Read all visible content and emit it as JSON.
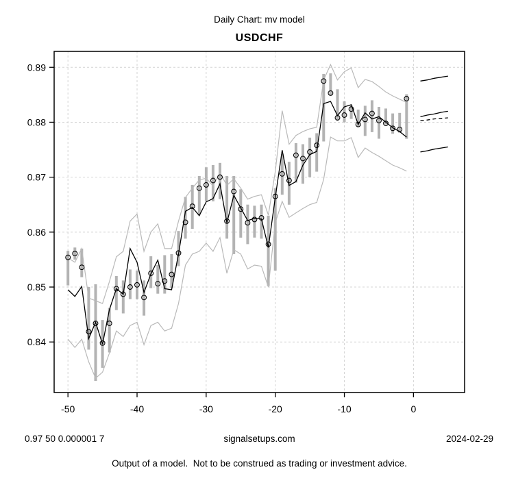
{
  "header": {
    "title": "Daily Chart: mv model",
    "subtitle": "USDCHF"
  },
  "footer": {
    "params": "0.97 50 0.000001 7",
    "site": "signalsetups.com",
    "date": "2024-02-29",
    "disclaimer": "Output of a model.  Not to be construed as trading or investment advice."
  },
  "chart_data": {
    "type": "line",
    "title": "Daily Chart: mv model",
    "subtitle": "USDCHF",
    "xlabel": "",
    "ylabel": "",
    "xlim": [
      -52,
      7.4
    ],
    "ylim": [
      0.8308,
      0.8929
    ],
    "x_ticks": [
      -50,
      -40,
      -30,
      -20,
      -10,
      0
    ],
    "y_ticks": [
      0.84,
      0.85,
      0.86,
      0.87,
      0.88,
      0.89
    ],
    "grid": true,
    "legend_position": "none",
    "colors": {
      "range_bar": "#b3b3b3",
      "band_line": "#b9b9b9",
      "model_line": "#000000",
      "close_marker": "#000000",
      "grid_line": "#d4d4d4",
      "axis": "#000000",
      "background": "#ffffff"
    },
    "x": [
      -50,
      -49,
      -48,
      -47,
      -46,
      -45,
      -44,
      -43,
      -42,
      -41,
      -40,
      -39,
      -38,
      -37,
      -36,
      -35,
      -34,
      -33,
      -32,
      -31,
      -30,
      -29,
      -28,
      -27,
      -26,
      -25,
      -24,
      -23,
      -22,
      -21,
      -20,
      -19,
      -18,
      -17,
      -16,
      -15,
      -14,
      -13,
      -12,
      -11,
      -10,
      -9,
      -8,
      -7,
      -6,
      -5,
      -4,
      -3,
      -2,
      -1
    ],
    "series": [
      {
        "name": "daily_range",
        "type": "bar-range",
        "high": [
          0.8566,
          0.8572,
          0.857,
          0.85,
          0.8505,
          0.844,
          0.8462,
          0.852,
          0.8512,
          0.8532,
          0.853,
          0.8512,
          0.8556,
          0.854,
          0.8558,
          0.856,
          0.8602,
          0.8664,
          0.8686,
          0.8702,
          0.8718,
          0.8722,
          0.8726,
          0.8702,
          0.8702,
          0.8678,
          0.865,
          0.8648,
          0.865,
          0.863,
          0.868,
          0.8742,
          0.8728,
          0.8762,
          0.876,
          0.8772,
          0.878,
          0.8888,
          0.8889,
          0.886,
          0.8838,
          0.8831,
          0.8823,
          0.883,
          0.884,
          0.8828,
          0.8825,
          0.8816,
          0.8817,
          0.8851
        ],
        "low": [
          0.8503,
          0.855,
          0.8518,
          0.8386,
          0.8329,
          0.8353,
          0.8381,
          0.8458,
          0.8452,
          0.8478,
          0.8478,
          0.8448,
          0.8498,
          0.8488,
          0.8488,
          0.8498,
          0.8538,
          0.8588,
          0.8606,
          0.8632,
          0.8656,
          0.8656,
          0.866,
          0.8588,
          0.856,
          0.859,
          0.8578,
          0.859,
          0.8588,
          0.8502,
          0.853,
          0.8668,
          0.865,
          0.869,
          0.8688,
          0.87,
          0.871,
          0.8765,
          0.885,
          0.8803,
          0.88,
          0.8806,
          0.8791,
          0.8775,
          0.8782,
          0.877,
          0.8796,
          0.8779,
          0.8781,
          0.877
        ]
      },
      {
        "name": "close",
        "type": "scatter",
        "marker": "open-circle",
        "values": [
          0.8554,
          0.8561,
          0.8536,
          0.8419,
          0.8434,
          0.8398,
          0.8434,
          0.8497,
          0.8487,
          0.85,
          0.8504,
          0.8481,
          0.8525,
          0.8506,
          0.8511,
          0.8523,
          0.8562,
          0.8618,
          0.8647,
          0.868,
          0.8686,
          0.8694,
          0.87,
          0.862,
          0.8674,
          0.8642,
          0.8617,
          0.8623,
          0.8626,
          0.8578,
          0.8665,
          0.8706,
          0.8694,
          0.874,
          0.8734,
          0.8746,
          0.8758,
          0.8875,
          0.8853,
          0.8808,
          0.8813,
          0.8824,
          0.8796,
          0.8805,
          0.8816,
          0.8803,
          0.8798,
          0.8789,
          0.8787,
          0.8843
        ]
      },
      {
        "name": "model",
        "type": "line",
        "values": [
          0.8495,
          0.8483,
          0.8501,
          0.8406,
          0.8436,
          0.8396,
          0.8459,
          0.8497,
          0.8487,
          0.857,
          0.8545,
          0.849,
          0.8524,
          0.8549,
          0.8497,
          0.8495,
          0.856,
          0.8638,
          0.8645,
          0.863,
          0.8655,
          0.8661,
          0.8688,
          0.8617,
          0.8667,
          0.8644,
          0.8621,
          0.8625,
          0.8624,
          0.8572,
          0.8663,
          0.8749,
          0.8685,
          0.8692,
          0.8722,
          0.8741,
          0.8747,
          0.8834,
          0.8838,
          0.8812,
          0.8828,
          0.8832,
          0.8796,
          0.8817,
          0.8806,
          0.881,
          0.88,
          0.879,
          0.8783,
          0.8773
        ]
      },
      {
        "name": "upper_band",
        "type": "line",
        "values": [
          0.8553,
          0.8545,
          0.857,
          0.848,
          0.8475,
          0.847,
          0.851,
          0.8555,
          0.8565,
          0.862,
          0.8633,
          0.8565,
          0.86,
          0.8615,
          0.857,
          0.857,
          0.862,
          0.8663,
          0.868,
          0.8695,
          0.8698,
          0.8684,
          0.8708,
          0.8685,
          0.8697,
          0.868,
          0.866,
          0.8665,
          0.8668,
          0.8631,
          0.871,
          0.8821,
          0.876,
          0.8776,
          0.8783,
          0.8788,
          0.8791,
          0.8877,
          0.8905,
          0.8877,
          0.8892,
          0.8899,
          0.8863,
          0.8878,
          0.8874,
          0.8865,
          0.8855,
          0.8848,
          0.8842,
          0.8836
        ]
      },
      {
        "name": "lower_band",
        "type": "line",
        "values": [
          0.8405,
          0.839,
          0.8405,
          0.8364,
          0.8334,
          0.8345,
          0.838,
          0.842,
          0.841,
          0.843,
          0.8436,
          0.8395,
          0.843,
          0.8436,
          0.842,
          0.8425,
          0.847,
          0.854,
          0.856,
          0.8565,
          0.858,
          0.8565,
          0.859,
          0.8525,
          0.8568,
          0.856,
          0.8533,
          0.854,
          0.8538,
          0.85,
          0.8617,
          0.8656,
          0.8627,
          0.8635,
          0.8643,
          0.865,
          0.8654,
          0.8696,
          0.8773,
          0.8766,
          0.8766,
          0.8772,
          0.8736,
          0.8753,
          0.8745,
          0.8738,
          0.873,
          0.8722,
          0.8717,
          0.8711
        ]
      }
    ],
    "forecast": {
      "x": [
        1,
        2,
        3,
        4,
        5
      ],
      "series": [
        {
          "name": "forecast_upper",
          "style": "solid",
          "values": [
            0.8875,
            0.8877,
            0.888,
            0.8882,
            0.8884
          ]
        },
        {
          "name": "forecast_mean",
          "style": "solid",
          "values": [
            0.881,
            0.8813,
            0.8815,
            0.8818,
            0.882
          ]
        },
        {
          "name": "forecast_mean_alt",
          "style": "dashed",
          "values": [
            0.8803,
            0.8804,
            0.8806,
            0.8807,
            0.8808
          ]
        },
        {
          "name": "forecast_lower",
          "style": "solid",
          "values": [
            0.8746,
            0.8748,
            0.8751,
            0.8753,
            0.8755
          ]
        }
      ]
    }
  }
}
